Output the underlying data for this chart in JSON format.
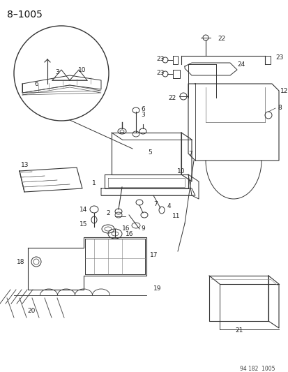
{
  "title": "8–1005",
  "footer": "94 182  1005",
  "bg_color": "#ffffff",
  "text_color": "#1a1a1a",
  "figsize": [
    4.14,
    5.33
  ],
  "dpi": 100
}
